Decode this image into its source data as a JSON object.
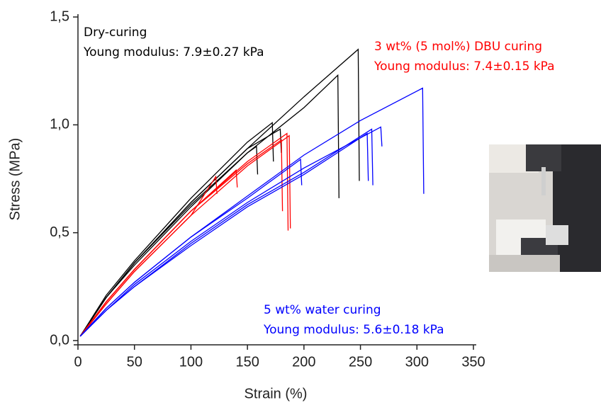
{
  "chart_data": {
    "type": "line",
    "x_label": "Strain (%)",
    "y_label": "Stress (MPa)",
    "xlim": [
      0,
      350
    ],
    "xticks": [
      0,
      50,
      100,
      150,
      200,
      250,
      300,
      350
    ],
    "ylim": [
      0,
      1.5
    ],
    "yticks": [
      {
        "value": 0,
        "label": "0,0"
      },
      {
        "value": 0.5,
        "label": "0,5"
      },
      {
        "value": 1,
        "label": "1,0"
      },
      {
        "value": 1.5,
        "label": "1,5"
      }
    ],
    "annotations": [
      {
        "text": "Dry-curing",
        "color": "#000000"
      },
      {
        "text": "Young modulus: 7.9±0.27 kPa",
        "color": "#000000"
      },
      {
        "text": "3 wt% (5 mol%) DBU curing",
        "color": "#ff0000"
      },
      {
        "text": "Young modulus: 7.4±0.15 kPa",
        "color": "#ff0000"
      },
      {
        "text": "5 wt% water curing",
        "color": "#0000ff"
      },
      {
        "text": "Young modulus: 5.6±0.18 kPa",
        "color": "#0000ff"
      }
    ],
    "series": [
      {
        "color": "#000000",
        "x": [
          2,
          25,
          50,
          100,
          150,
          200,
          248,
          249
        ],
        "values": [
          0.02,
          0.2,
          0.36,
          0.64,
          0.89,
          1.13,
          1.35,
          0.74
        ]
      },
      {
        "color": "#000000",
        "x": [
          2,
          25,
          50,
          100,
          150,
          200,
          230,
          231
        ],
        "values": [
          0.02,
          0.2,
          0.36,
          0.63,
          0.87,
          1.08,
          1.23,
          0.66
        ]
      },
      {
        "color": "#000000",
        "x": [
          2,
          25,
          50,
          100,
          150,
          172,
          173
        ],
        "values": [
          0.02,
          0.21,
          0.37,
          0.66,
          0.92,
          1.01,
          0.83
        ]
      },
      {
        "color": "#000000",
        "x": [
          2,
          25,
          50,
          100,
          150,
          179,
          180
        ],
        "values": [
          0.02,
          0.2,
          0.36,
          0.64,
          0.89,
          0.98,
          0.87
        ]
      },
      {
        "color": "#000000",
        "x": [
          2,
          25,
          50,
          100,
          150,
          158,
          159
        ],
        "values": [
          0.02,
          0.2,
          0.35,
          0.62,
          0.87,
          0.9,
          0.77
        ]
      },
      {
        "color": "#ff0000",
        "x": [
          2,
          25,
          50,
          100,
          150,
          185,
          186
        ],
        "values": [
          0.02,
          0.18,
          0.33,
          0.6,
          0.83,
          0.96,
          0.51
        ]
      },
      {
        "color": "#ff0000",
        "x": [
          2,
          25,
          50,
          100,
          150,
          187,
          188
        ],
        "values": [
          0.02,
          0.17,
          0.32,
          0.58,
          0.81,
          0.95,
          0.52
        ]
      },
      {
        "color": "#ff0000",
        "x": [
          2,
          25,
          50,
          100,
          150,
          180,
          181
        ],
        "values": [
          0.02,
          0.18,
          0.33,
          0.6,
          0.82,
          0.93,
          0.6
        ]
      },
      {
        "color": "#ff0000",
        "x": [
          2,
          25,
          50,
          100,
          140,
          141
        ],
        "values": [
          0.02,
          0.18,
          0.33,
          0.6,
          0.79,
          0.71
        ]
      },
      {
        "color": "#ff0000",
        "x": [
          2,
          25,
          50,
          100,
          122,
          123
        ],
        "values": [
          0.02,
          0.17,
          0.32,
          0.58,
          0.76,
          0.68
        ]
      },
      {
        "color": "#0000ff",
        "x": [
          2,
          25,
          50,
          100,
          150,
          200,
          250,
          305,
          306
        ],
        "values": [
          0.02,
          0.15,
          0.27,
          0.48,
          0.67,
          0.86,
          1.02,
          1.17,
          0.68
        ]
      },
      {
        "color": "#0000ff",
        "x": [
          2,
          25,
          50,
          100,
          150,
          200,
          268,
          269
        ],
        "values": [
          0.02,
          0.14,
          0.26,
          0.46,
          0.64,
          0.8,
          0.99,
          0.9
        ]
      },
      {
        "color": "#0000ff",
        "x": [
          2,
          25,
          50,
          100,
          150,
          200,
          260,
          261
        ],
        "values": [
          0.02,
          0.14,
          0.25,
          0.45,
          0.63,
          0.78,
          0.98,
          0.72
        ]
      },
      {
        "color": "#0000ff",
        "x": [
          2,
          25,
          50,
          100,
          150,
          200,
          256,
          257
        ],
        "values": [
          0.02,
          0.14,
          0.25,
          0.44,
          0.62,
          0.77,
          0.96,
          0.74
        ]
      },
      {
        "color": "#0000ff",
        "x": [
          2,
          25,
          50,
          100,
          150,
          197,
          198
        ],
        "values": [
          0.02,
          0.15,
          0.27,
          0.48,
          0.66,
          0.84,
          0.72
        ]
      }
    ]
  }
}
